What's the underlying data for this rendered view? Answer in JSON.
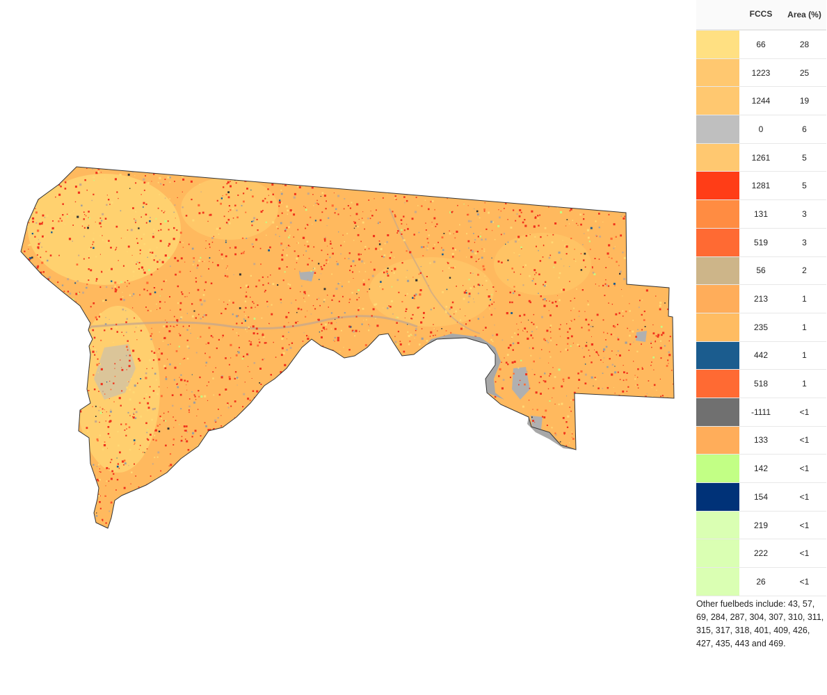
{
  "legend": {
    "header_fccs": "FCCS",
    "header_area": "Area (%)",
    "rows": [
      {
        "fccs": "66",
        "area": "28",
        "color": "#FFE082"
      },
      {
        "fccs": "1223",
        "area": "25",
        "color": "#FFC870"
      },
      {
        "fccs": "1244",
        "area": "19",
        "color": "#FFC870"
      },
      {
        "fccs": "0",
        "area": "6",
        "color": "#BFBFBF"
      },
      {
        "fccs": "1261",
        "area": "5",
        "color": "#FFC870"
      },
      {
        "fccs": "1281",
        "area": "5",
        "color": "#FF3D17"
      },
      {
        "fccs": "131",
        "area": "3",
        "color": "#FF8C42"
      },
      {
        "fccs": "519",
        "area": "3",
        "color": "#FF6A33"
      },
      {
        "fccs": "56",
        "area": "2",
        "color": "#CDB589"
      },
      {
        "fccs": "213",
        "area": "1",
        "color": "#FFAD5A"
      },
      {
        "fccs": "235",
        "area": "1",
        "color": "#FFBC62"
      },
      {
        "fccs": "442",
        "area": "1",
        "color": "#1B5C8E"
      },
      {
        "fccs": "518",
        "area": "1",
        "color": "#FF6A33"
      },
      {
        "fccs": "-1111",
        "area": "<1",
        "color": "#707070"
      },
      {
        "fccs": "133",
        "area": "<1",
        "color": "#FFAD5A"
      },
      {
        "fccs": "142",
        "area": "<1",
        "color": "#C2FF85"
      },
      {
        "fccs": "154",
        "area": "<1",
        "color": "#003278"
      },
      {
        "fccs": "219",
        "area": "<1",
        "color": "#DAFFB3"
      },
      {
        "fccs": "222",
        "area": "<1",
        "color": "#DAFFB3"
      },
      {
        "fccs": "26",
        "area": "<1",
        "color": "#DAFFB3"
      }
    ],
    "other_fuelbeds": "Other fuelbeds include: 43, 57, 69, 284, 287, 304, 307, 310, 311, 315, 317, 318, 401, 409, 426, 427, 435, 443 and 469."
  },
  "map": {
    "base_color": "#FFB95E",
    "light_color": "#FFD975",
    "border_color": "#333333",
    "water_color": "#B0B0B0",
    "hot_color": "#F0321C"
  }
}
